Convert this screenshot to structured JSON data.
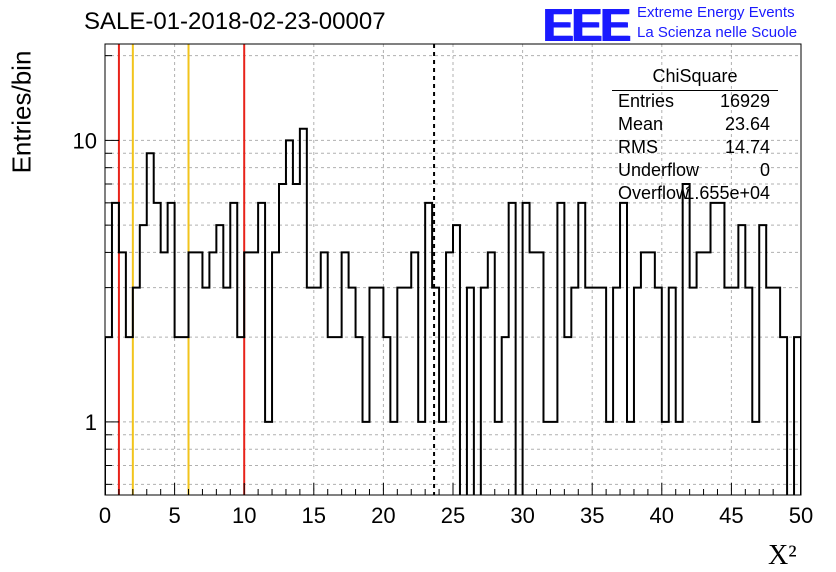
{
  "header": {
    "title": "SALE-01-2018-02-23-00007",
    "logo_text": "EEE",
    "logo_line1": "Extreme Energy Events",
    "logo_line2": "La Scienza nelle Scuole"
  },
  "stats": {
    "title": "ChiSquare",
    "rows": [
      {
        "key": "Entries",
        "value": "16929"
      },
      {
        "key": "Mean",
        "value": "23.64"
      },
      {
        "key": "RMS",
        "value": "14.74"
      },
      {
        "key": "Underflow",
        "value": "0"
      },
      {
        "key": "Overflow",
        "value": "1.655e+04"
      }
    ]
  },
  "colors": {
    "red_marker": "#e8231a",
    "yellow_marker": "#f2c41c",
    "grid": "#b0b0b0",
    "line": "#000000"
  },
  "chart_data": {
    "type": "histogram",
    "xlabel": "X²",
    "ylabel": "Entries/bin",
    "xlim": [
      0,
      50
    ],
    "ylim": [
      0.55,
      22
    ],
    "yscale": "log",
    "grid": true,
    "x_ticks": [
      "0",
      "5",
      "10",
      "15",
      "20",
      "25",
      "30",
      "35",
      "40",
      "45",
      "50"
    ],
    "y_ticks": [
      {
        "value": 1,
        "label": "1"
      },
      {
        "value": 10,
        "label": "10"
      }
    ],
    "bin_width": 0.5,
    "bins_start": 0,
    "values": [
      2,
      6,
      4,
      2,
      3,
      5,
      9,
      6,
      4,
      6,
      2,
      2,
      4,
      4,
      3,
      4,
      5,
      3,
      6,
      2,
      4,
      4,
      6,
      1,
      4,
      7,
      10,
      7,
      11,
      3,
      3,
      4,
      2,
      2,
      4,
      3,
      2,
      1,
      3,
      3,
      2,
      1,
      3,
      3,
      4,
      1,
      6,
      3,
      1,
      4,
      5,
      0,
      3,
      0,
      3,
      4,
      1,
      2,
      6,
      0,
      6,
      4,
      4,
      1,
      1,
      6,
      2,
      3,
      6,
      3,
      3,
      3,
      1,
      3,
      6,
      1,
      3,
      4,
      4,
      3,
      1,
      3,
      1,
      7,
      3,
      4,
      4,
      6,
      6,
      3,
      3,
      5,
      3,
      1,
      5,
      3,
      3,
      2,
      0,
      2
    ],
    "markers": [
      {
        "x": 1,
        "color": "red",
        "style": "solid"
      },
      {
        "x": 2,
        "color": "yellow",
        "style": "solid"
      },
      {
        "x": 6,
        "color": "yellow",
        "style": "solid"
      },
      {
        "x": 10,
        "color": "red",
        "style": "solid"
      },
      {
        "x": 23.64,
        "color": "black",
        "style": "dashed"
      }
    ]
  }
}
